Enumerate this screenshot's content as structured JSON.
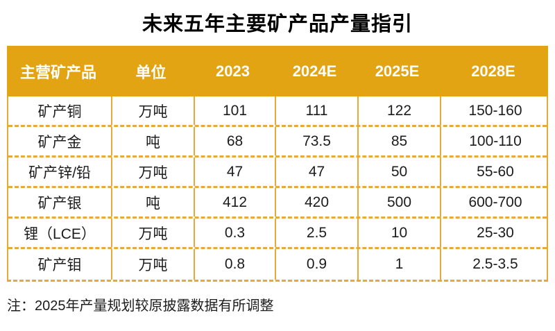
{
  "colors": {
    "gold_header": "#e2a413",
    "gold_border": "#e7a93a",
    "header_text": "#ffffff",
    "body_text": "#1c1c1c"
  },
  "chart_data": {
    "type": "table",
    "title": "未来五年主要矿产品产量指引",
    "columns": [
      "主营矿产品",
      "单位",
      "2023",
      "2024E",
      "2025E",
      "2028E"
    ],
    "rows": [
      [
        "矿产铜",
        "万吨",
        "101",
        "111",
        "122",
        "150-160"
      ],
      [
        "矿产金",
        "吨",
        "68",
        "73.5",
        "85",
        "100-110"
      ],
      [
        "矿产锌/铅",
        "万吨",
        "47",
        "47",
        "50",
        "55-60"
      ],
      [
        "矿产银",
        "吨",
        "412",
        "420",
        "500",
        "600-700"
      ],
      [
        "锂（LCE）",
        "万吨",
        "0.3",
        "2.5",
        "10",
        "25-30"
      ],
      [
        "矿产钼",
        "万吨",
        "0.8",
        "0.9",
        "1",
        "2.5-3.5"
      ]
    ],
    "note": "注：2025年产量规划较原披露数据有所调整"
  }
}
